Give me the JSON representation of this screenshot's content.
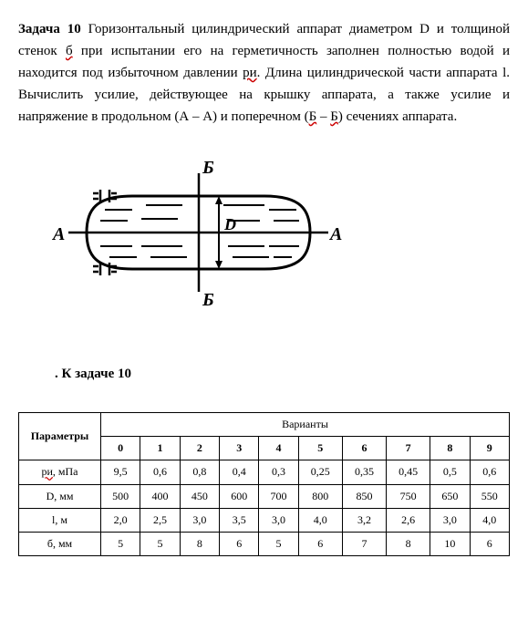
{
  "problem": {
    "label": "Задача 10",
    "text_p1": " Горизонтальный цилиндрический аппарат диаметром D и толщиной стенок ",
    "underline1": "б",
    "text_p2": " при испытании его на герметичность заполнен полностью водой и находится под избыточном давлении ",
    "underline2": "ри",
    "text_p3": ". Длина цилиндрической части аппарата l. Вычислить усилие, действующее на крышку аппарата, а также усилие и напряжение в продольном (А – А) и поперечном (",
    "underline3": "Б",
    "text_p4": " – ",
    "underline4": "Б",
    "text_p5": ") сечениях аппарата."
  },
  "diagram": {
    "label_A_left": "А",
    "label_A_right": "А",
    "label_B_top": "Б",
    "label_B_bottom": "Б",
    "label_D": "D",
    "stroke_color": "#000000",
    "stroke_width": 2.5
  },
  "caption": ". К задаче 10",
  "table": {
    "param_header": "Параметры",
    "variant_header": "Варианты",
    "variant_numbers": [
      "0",
      "1",
      "2",
      "3",
      "4",
      "5",
      "6",
      "7",
      "8",
      "9"
    ],
    "rows": [
      {
        "label": "ри, мПа",
        "underline": true,
        "values": [
          "9,5",
          "0,6",
          "0,8",
          "0,4",
          "0,3",
          "0,25",
          "0,35",
          "0,45",
          "0,5",
          "0,6"
        ]
      },
      {
        "label": "D, мм",
        "underline": false,
        "values": [
          "500",
          "400",
          "450",
          "600",
          "700",
          "800",
          "850",
          "750",
          "650",
          "550"
        ]
      },
      {
        "label": "l, м",
        "underline": false,
        "values": [
          "2,0",
          "2,5",
          "3,0",
          "3,5",
          "3,0",
          "4,0",
          "3,2",
          "2,6",
          "3,0",
          "4,0"
        ]
      },
      {
        "label": "б, мм",
        "underline": false,
        "values": [
          "5",
          "5",
          "8",
          "6",
          "5",
          "6",
          "7",
          "8",
          "10",
          "6"
        ]
      }
    ]
  }
}
